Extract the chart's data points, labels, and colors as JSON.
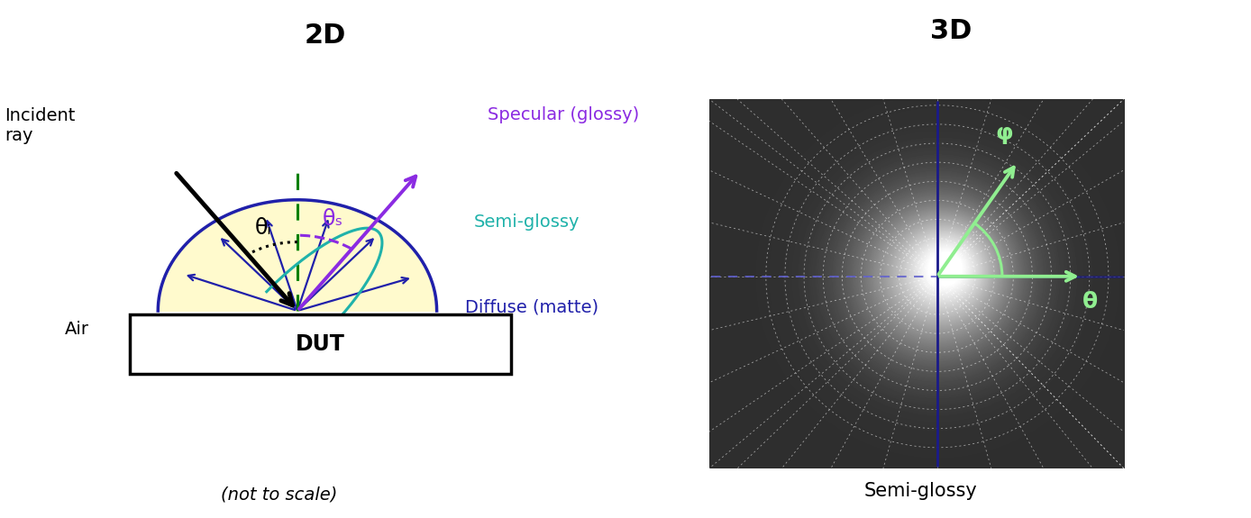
{
  "title_2d": "2D",
  "title_3d": "3D",
  "subtitle_2d": "(not to scale)",
  "subtitle_3d": "Semi-glossy",
  "label_incident": "Incident\nray",
  "label_air": "Air",
  "label_dut": "DUT",
  "label_specular": "Specular (glossy)",
  "label_semi_glossy": "Semi-glossy",
  "label_diffuse": "Diffuse (matte)",
  "label_theta_i": "θᵢ",
  "label_theta_s": "θₛ",
  "label_phi": "φ",
  "label_theta": "θ",
  "bg_color": "#ffffff",
  "blue_color": "#2020aa",
  "purple_color": "#8b2be2",
  "teal_color": "#20b2aa",
  "green_arrow_color": "#90ee90",
  "black_color": "#000000",
  "yellow_fill": "#fffacd",
  "polar_crosshair_color": "#1a1a7a",
  "polar_crosshair_dash_color": "#6060aa"
}
